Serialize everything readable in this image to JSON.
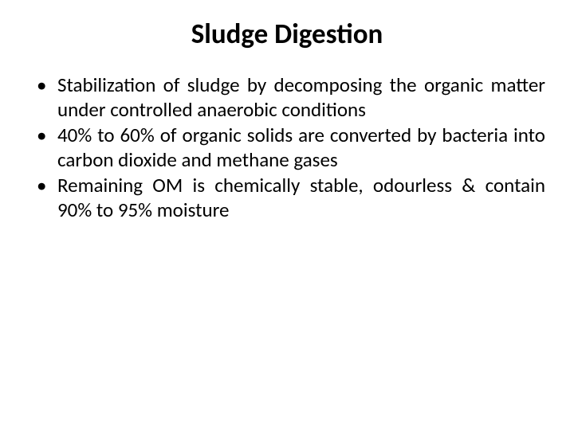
{
  "slide": {
    "title": "Sludge Digestion",
    "title_fontsize": 35,
    "title_weight": 700,
    "title_color": "#000000",
    "background_color": "#ffffff",
    "bullets": [
      "Stabilization of sludge by decomposing the organic matter under controlled anaerobic conditions",
      "40% to 60% of organic solids are converted by bacteria into carbon dioxide and methane gases",
      "Remaining OM is chemically stable, odourless & contain 90% to 95% moisture"
    ],
    "bullet_fontsize": 25,
    "bullet_color": "#000000",
    "bullet_align": "justify",
    "font_family": "Calibri"
  }
}
